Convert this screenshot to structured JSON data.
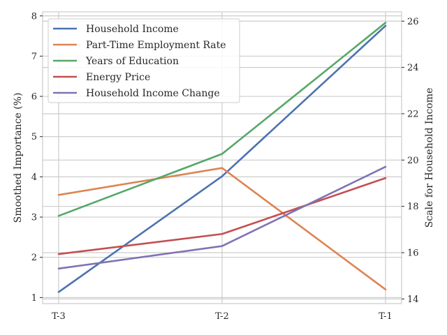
{
  "chart_data": {
    "type": "line",
    "categories": [
      "T-3",
      "T-2",
      "T-1"
    ],
    "ylabel_left": "Smoothed Importance (%)",
    "ylabel_right": "Scale for Household Income",
    "ylim_left": [
      0.85,
      8.1
    ],
    "ylim_right": [
      13.8,
      26.4
    ],
    "yticks_left": [
      "1",
      "2",
      "3",
      "4",
      "5",
      "6",
      "7",
      "8"
    ],
    "yticks_right": [
      "14",
      "16",
      "18",
      "20",
      "22",
      "24",
      "26"
    ],
    "grid": true,
    "legend_position": "top-left",
    "series": [
      {
        "name": "Household Income",
        "axis": "right",
        "color": "#4c72b0",
        "values": [
          14.3,
          19.3,
          25.8
        ]
      },
      {
        "name": "Part-Time Employment Rate",
        "axis": "left",
        "color": "#dd8452",
        "values": [
          3.55,
          4.22,
          1.2
        ]
      },
      {
        "name": "Years of Education",
        "axis": "left",
        "color": "#55a868",
        "values": [
          3.03,
          4.57,
          7.83
        ]
      },
      {
        "name": "Energy Price",
        "axis": "left",
        "color": "#c44e52",
        "values": [
          2.08,
          2.58,
          3.97
        ]
      },
      {
        "name": "Household Income Change",
        "axis": "left",
        "color": "#8172b3",
        "values": [
          1.72,
          2.28,
          4.25
        ]
      }
    ]
  }
}
